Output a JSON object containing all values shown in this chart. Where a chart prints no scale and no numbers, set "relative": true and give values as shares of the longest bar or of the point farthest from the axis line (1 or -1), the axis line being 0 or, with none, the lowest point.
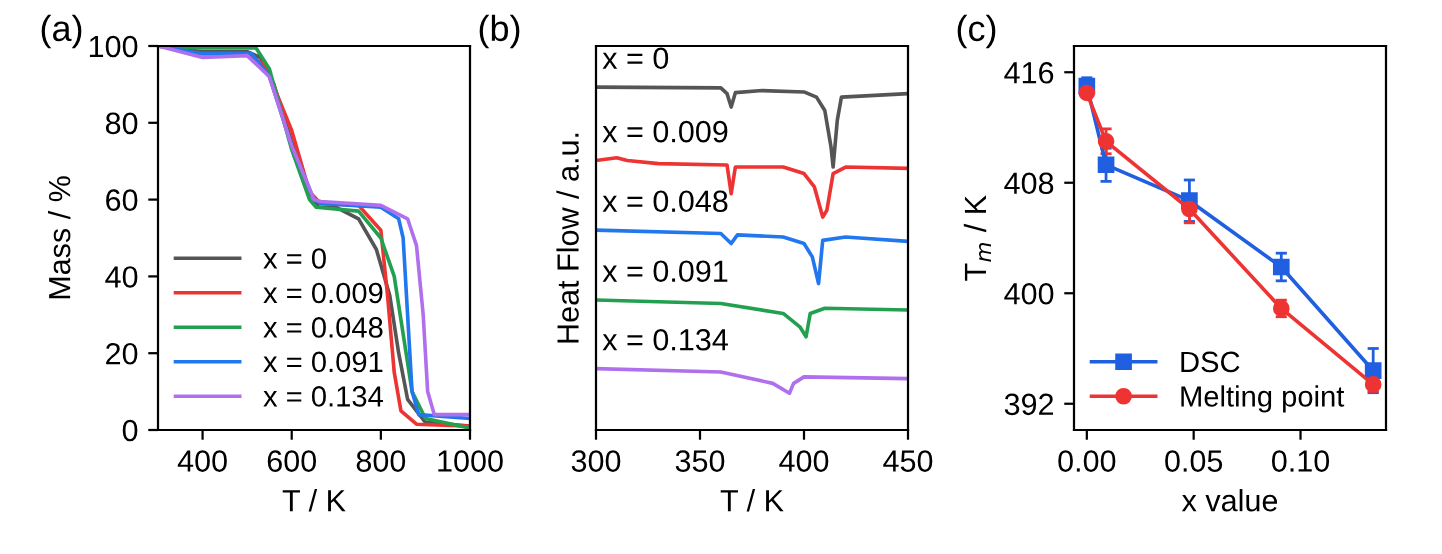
{
  "chart_data": [
    {
      "type": "line",
      "title": "(a)",
      "xlabel": "T / K",
      "ylabel": "Mass / %",
      "xlim": [
        300,
        1000
      ],
      "ylim": [
        0,
        100
      ],
      "xticks": [
        400,
        600,
        800,
        1000
      ],
      "yticks": [
        0,
        20,
        40,
        60,
        80,
        100
      ],
      "legend": "bottom left",
      "grid": false,
      "series": [
        {
          "name": "x = 0",
          "color": "#555555",
          "x": [
            300,
            400,
            500,
            530,
            560,
            600,
            640,
            660,
            700,
            750,
            790,
            820,
            840,
            860,
            900,
            1000
          ],
          "values": [
            100,
            98.5,
            98.5,
            97,
            90,
            75,
            62,
            58,
            58,
            55,
            47,
            35,
            20,
            8,
            2,
            1
          ]
        },
        {
          "name": "x = 0.009",
          "color": "#ee3333",
          "x": [
            300,
            400,
            500,
            540,
            600,
            640,
            665,
            750,
            800,
            815,
            830,
            845,
            880,
            1000
          ],
          "values": [
            100,
            98,
            98,
            95,
            78,
            62,
            59,
            58.5,
            52,
            35,
            15,
            5,
            1.5,
            1
          ]
        },
        {
          "name": "x = 0.048",
          "color": "#22a050",
          "x": [
            300,
            400,
            520,
            550,
            600,
            640,
            655,
            750,
            800,
            830,
            850,
            870,
            900,
            1000
          ],
          "values": [
            100,
            99.5,
            99.5,
            94,
            73,
            60,
            58,
            57,
            50,
            40,
            25,
            10,
            3,
            0.5
          ]
        },
        {
          "name": "x = 0.091",
          "color": "#2277ee",
          "x": [
            300,
            400,
            510,
            550,
            600,
            650,
            665,
            800,
            840,
            850,
            860,
            870,
            885,
            1000
          ],
          "values": [
            100,
            98,
            98,
            92,
            74,
            60,
            59,
            58,
            55,
            50,
            30,
            10,
            4,
            3
          ]
        },
        {
          "name": "x = 0.134",
          "color": "#b070ee",
          "x": [
            300,
            400,
            500,
            550,
            600,
            650,
            665,
            800,
            860,
            880,
            895,
            905,
            920,
            1000
          ],
          "values": [
            100,
            97,
            97.5,
            92,
            74,
            60,
            59.5,
            58.5,
            55,
            48,
            30,
            10,
            4,
            4
          ]
        }
      ]
    },
    {
      "type": "line",
      "title": "(b)",
      "xlabel": "T / K",
      "ylabel": "Heat Flow / a.u.",
      "relative": true,
      "xlim": [
        300,
        450
      ],
      "xticks": [
        300,
        350,
        400,
        450
      ],
      "tick_labels": "x",
      "grid": false,
      "series": [
        {
          "name": "x = 0",
          "color": "#555555",
          "x": [
            300,
            360,
            363,
            365,
            367,
            380,
            400,
            406,
            410,
            413,
            414,
            416,
            418,
            450
          ],
          "values": [
            1.0,
            0.998,
            0.981,
            0.942,
            0.984,
            0.99,
            0.986,
            0.971,
            0.932,
            0.825,
            0.767,
            0.903,
            0.971,
            0.981
          ]
        },
        {
          "name": "x = 0.009",
          "color": "#ee3333",
          "x": [
            300,
            310,
            315,
            330,
            363,
            365,
            367,
            390,
            400,
            405,
            409,
            411,
            414,
            420,
            450
          ],
          "values": [
            0.786,
            0.794,
            0.786,
            0.777,
            0.773,
            0.689,
            0.767,
            0.767,
            0.748,
            0.709,
            0.621,
            0.641,
            0.748,
            0.767,
            0.763
          ]
        },
        {
          "name": "x = 0.048",
          "color": "#2277ee",
          "x": [
            300,
            360,
            365,
            368,
            390,
            400,
            404,
            407,
            409,
            420,
            450
          ],
          "values": [
            0.583,
            0.573,
            0.544,
            0.569,
            0.563,
            0.544,
            0.505,
            0.427,
            0.553,
            0.563,
            0.55
          ]
        },
        {
          "name": "x = 0.091",
          "color": "#22a050",
          "x": [
            300,
            360,
            390,
            398,
            401,
            403,
            410,
            450
          ],
          "values": [
            0.379,
            0.369,
            0.34,
            0.301,
            0.272,
            0.34,
            0.355,
            0.35
          ]
        },
        {
          "name": "x = 0.134",
          "color": "#b070ee",
          "x": [
            300,
            360,
            385,
            393,
            395,
            400,
            450
          ],
          "values": [
            0.179,
            0.169,
            0.136,
            0.107,
            0.136,
            0.155,
            0.15
          ]
        }
      ]
    },
    {
      "type": "line",
      "title": "(c)",
      "xlabel": "x value",
      "ylabel": "T$_{m}$ / K",
      "xlim": [
        -0.006,
        0.14
      ],
      "ylim": [
        390.1,
        417.9
      ],
      "xticks": [
        {
          "value": 0,
          "label": "0.00"
        },
        {
          "value": 0.05,
          "label": "0.05"
        },
        {
          "value": 0.1,
          "label": "0.10"
        }
      ],
      "yticks": [
        392,
        400,
        408,
        416
      ],
      "legend": "bottom left",
      "grid": false,
      "series": [
        {
          "name": "DSC",
          "color": "#1f5fe0",
          "marker": "square",
          "x": [
            0,
            0.009,
            0.048,
            0.091,
            0.134
          ],
          "values": [
            415.0,
            409.3,
            406.7,
            401.9,
            394.4
          ],
          "errors": [
            0.6,
            1.2,
            1.5,
            1.0,
            1.6
          ]
        },
        {
          "name": "Melting point",
          "color": "#ee3333",
          "marker": "circle",
          "x": [
            0,
            0.009,
            0.048,
            0.091,
            0.134
          ],
          "values": [
            414.5,
            411.0,
            406.1,
            398.9,
            393.4
          ],
          "errors": [
            0.3,
            0.9,
            1.0,
            0.6,
            0.5
          ]
        }
      ]
    }
  ]
}
